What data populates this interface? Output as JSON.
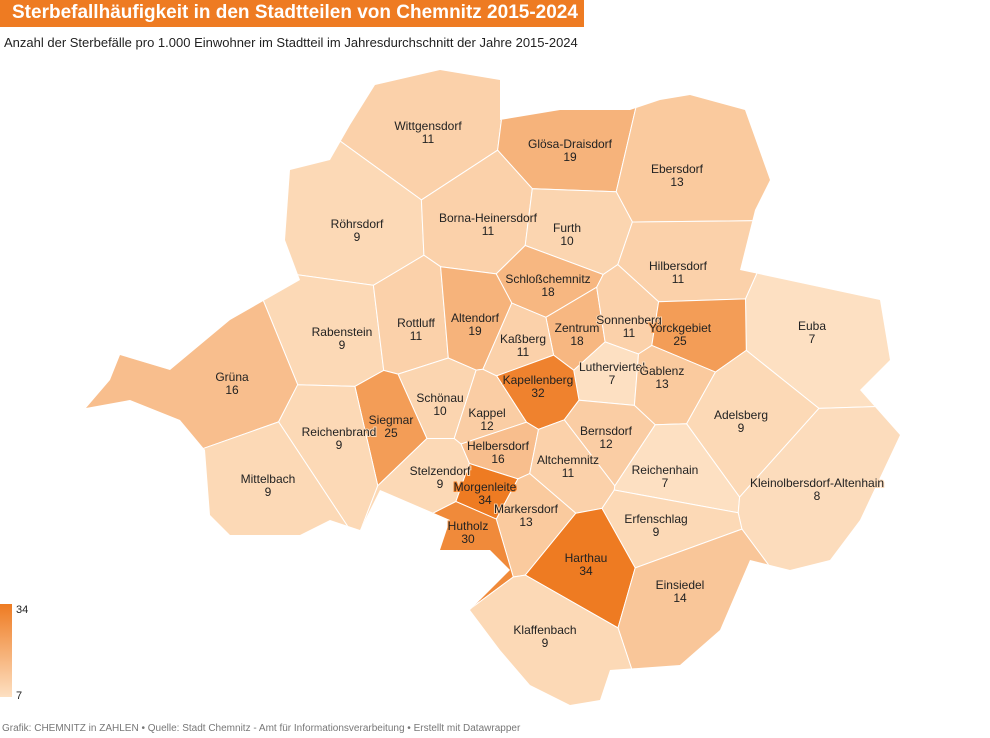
{
  "chart_data": {
    "type": "choropleth",
    "title": "Sterbefallhäufigkeit in den Stadtteilen von Chemnitz 2015-2024",
    "subtitle": "Anzahl der Sterbefälle pro 1.000 Einwohner im Stadtteil im Jahresdurchschnitt der Jahre 2015-2024",
    "categories": [
      "Wittgensdorf",
      "Glösa-Draisdorf",
      "Ebersdorf",
      "Röhrsdorf",
      "Borna-Heinersdorf",
      "Furth",
      "Hilbersdorf",
      "Schloßchemnitz",
      "Euba",
      "Rabenstein",
      "Rottluff",
      "Altendorf",
      "Zentrum",
      "Sonnenberg",
      "Yorckgebiet",
      "Kaßberg",
      "Grüna",
      "Lutherviertel",
      "Gablenz",
      "Kapellenberg",
      "Schönau",
      "Siegmar",
      "Kappel",
      "Adelsberg",
      "Reichenbrand",
      "Bernsdorf",
      "Helbersdorf",
      "Altchemnitz",
      "Reichenhain",
      "Stelzendorf",
      "Mittelbach",
      "Morgenleite",
      "Kleinolbersdorf-Altenhain",
      "Markersdorf",
      "Erfenschlag",
      "Hutholz",
      "Harthau",
      "Einsiedel",
      "Klaffenbach"
    ],
    "values": [
      11,
      19,
      13,
      9,
      11,
      10,
      11,
      18,
      7,
      9,
      11,
      19,
      18,
      11,
      25,
      11,
      16,
      7,
      13,
      32,
      10,
      25,
      12,
      9,
      9,
      12,
      16,
      11,
      7,
      9,
      9,
      34,
      8,
      13,
      9,
      30,
      34,
      14,
      9
    ],
    "legend": {
      "max": 34,
      "min": 7,
      "colors": [
        "#fde0c2",
        "#ee7b22"
      ]
    },
    "source": "Grafik: CHEMNITZ in ZAHLEN • Quelle: Stadt Chemnitz - Amt für Informationsverarbeitung • Erstellt mit Datawrapper"
  }
}
